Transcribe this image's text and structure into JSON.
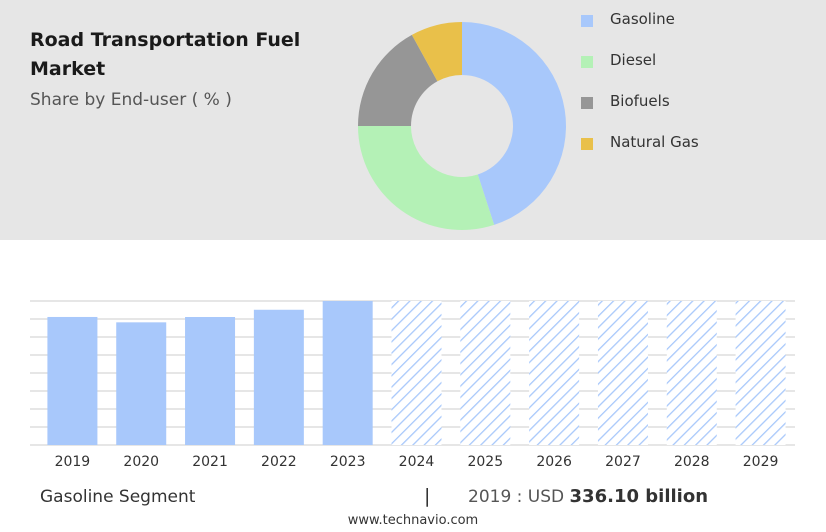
{
  "header": {
    "title": "Road Transportation Fuel Market",
    "subtitle": "Share by End-user ( % )"
  },
  "colors": {
    "gasoline": "#a8c8fb",
    "diesel": "#b4f1b6",
    "biofuels": "#969696",
    "natural_gas": "#e9c04a",
    "forecast_hatch": "#a8c8fb",
    "grid": "#cccccc"
  },
  "chart_data": [
    {
      "type": "pie",
      "variant": "donut",
      "categories": [
        "Gasoline",
        "Diesel",
        "Biofuels",
        "Natural Gas"
      ],
      "values": [
        45,
        30,
        17,
        8
      ],
      "legend_position": "right"
    },
    {
      "type": "bar",
      "categories": [
        "2019",
        "2020",
        "2021",
        "2022",
        "2023",
        "2024",
        "2025",
        "2026",
        "2027",
        "2028",
        "2029"
      ],
      "values": [
        336.1,
        322,
        336,
        355,
        378,
        378,
        378,
        378,
        378,
        378,
        378
      ],
      "forecast_from": "2024",
      "ylim": [
        0,
        378
      ],
      "grid": true
    }
  ],
  "footer": {
    "segment": "Gasoline Segment",
    "separator": "|",
    "value_prefix": "2019 : USD",
    "value": "336.10 billion",
    "website": "www.technavio.com"
  }
}
